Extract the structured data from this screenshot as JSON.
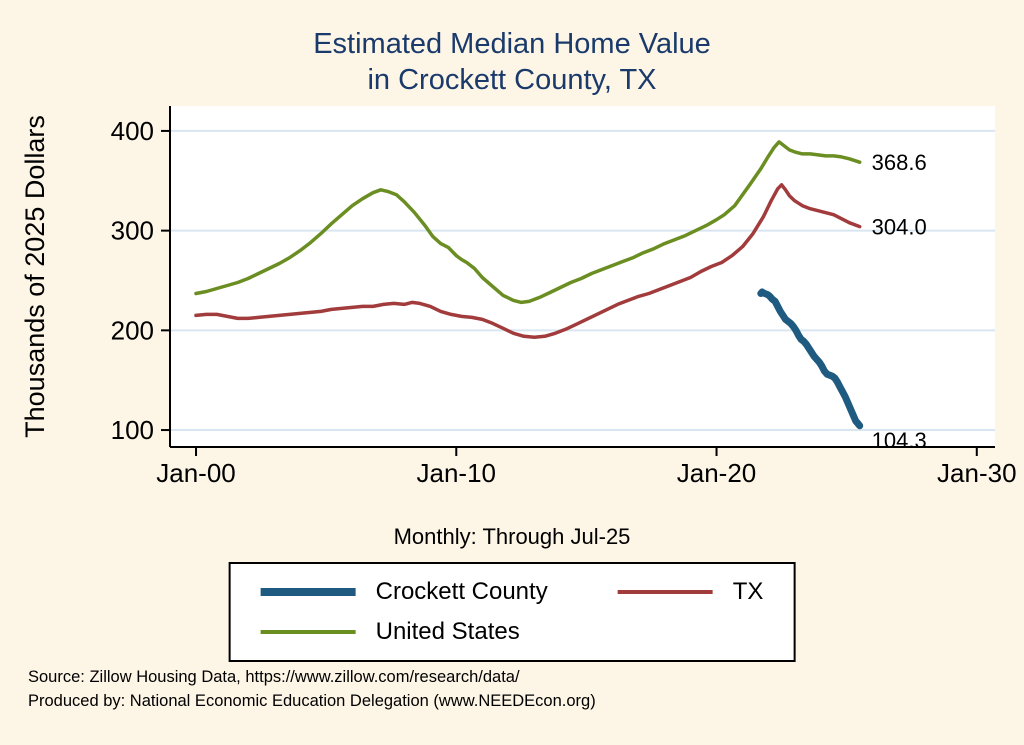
{
  "title": {
    "line1": "Estimated Median Home Value",
    "line2": "in Crockett County, TX"
  },
  "source_line1": "Source: Zillow Housing Data, https://www.zillow.com/research/data/",
  "source_line2": "Produced by: National Economic Education Delegation (www.NEEDEcon.org)",
  "colors": {
    "background": "#fdf5e6",
    "plot_background": "#ffffff",
    "grid": "#d9e6f2",
    "axis": "#000000",
    "title": "#1a3a6b",
    "crockett_county": "#1f5a80",
    "tx": "#a23c3c",
    "united_states": "#6b8e23"
  },
  "legend": {
    "items": [
      {
        "label": "Crockett County",
        "color": "#1f5a80",
        "thick": true
      },
      {
        "label": "TX",
        "color": "#a23c3c",
        "thick": false
      },
      {
        "label": "United States",
        "color": "#6b8e23",
        "thick": false
      }
    ]
  },
  "chart_data": {
    "type": "line",
    "title": "Estimated Median Home Value in Crockett County, TX",
    "xlabel": "Monthly: Through Jul-25",
    "ylabel": "Thousands of 2025 Dollars",
    "xlim": [
      1999.0,
      2030.7
    ],
    "ylim": [
      83,
      425
    ],
    "grid": "horizontal",
    "legend_position": "bottom",
    "xticks": [
      {
        "value": 2000,
        "label": "Jan-00"
      },
      {
        "value": 2010,
        "label": "Jan-10"
      },
      {
        "value": 2020,
        "label": "Jan-20"
      },
      {
        "value": 2030,
        "label": "Jan-30"
      }
    ],
    "yticks": [
      {
        "value": 100,
        "label": "100"
      },
      {
        "value": 200,
        "label": "200"
      },
      {
        "value": 300,
        "label": "300"
      },
      {
        "value": 400,
        "label": "400"
      }
    ],
    "series": [
      {
        "name": "Crockett County",
        "color": "#1f5a80",
        "line_width": 7,
        "end_label": "104.3",
        "points": [
          [
            2021.7,
            237
          ],
          [
            2021.75,
            238.5
          ],
          [
            2021.85,
            237
          ],
          [
            2021.95,
            236
          ],
          [
            2022.05,
            234
          ],
          [
            2022.15,
            231
          ],
          [
            2022.25,
            229
          ],
          [
            2022.35,
            224
          ],
          [
            2022.45,
            219
          ],
          [
            2022.55,
            215
          ],
          [
            2022.65,
            211
          ],
          [
            2022.75,
            209
          ],
          [
            2022.85,
            207
          ],
          [
            2022.95,
            204
          ],
          [
            2023.05,
            200
          ],
          [
            2023.15,
            195
          ],
          [
            2023.25,
            191
          ],
          [
            2023.35,
            189
          ],
          [
            2023.45,
            186
          ],
          [
            2023.55,
            182
          ],
          [
            2023.65,
            178
          ],
          [
            2023.75,
            174
          ],
          [
            2023.85,
            171
          ],
          [
            2023.95,
            168
          ],
          [
            2024.05,
            164
          ],
          [
            2024.15,
            159
          ],
          [
            2024.25,
            156
          ],
          [
            2024.35,
            155
          ],
          [
            2024.45,
            154
          ],
          [
            2024.55,
            152
          ],
          [
            2024.65,
            148
          ],
          [
            2024.75,
            143
          ],
          [
            2024.85,
            138
          ],
          [
            2024.95,
            133
          ],
          [
            2025.05,
            127
          ],
          [
            2025.15,
            121
          ],
          [
            2025.25,
            115
          ],
          [
            2025.35,
            109
          ],
          [
            2025.45,
            106
          ],
          [
            2025.5,
            104.3
          ]
        ]
      },
      {
        "name": "TX",
        "color": "#a23c3c",
        "line_width": 3.5,
        "end_label": "304.0",
        "points": [
          [
            2000,
            215
          ],
          [
            2000.4,
            216
          ],
          [
            2000.8,
            216
          ],
          [
            2001.2,
            214
          ],
          [
            2001.6,
            212
          ],
          [
            2002,
            212
          ],
          [
            2002.4,
            213
          ],
          [
            2002.8,
            214
          ],
          [
            2003.2,
            215
          ],
          [
            2003.6,
            216
          ],
          [
            2004,
            217
          ],
          [
            2004.4,
            218
          ],
          [
            2004.8,
            219
          ],
          [
            2005.2,
            221
          ],
          [
            2005.6,
            222
          ],
          [
            2006,
            223
          ],
          [
            2006.4,
            224
          ],
          [
            2006.8,
            224
          ],
          [
            2007.2,
            226
          ],
          [
            2007.6,
            227
          ],
          [
            2008,
            226
          ],
          [
            2008.3,
            228
          ],
          [
            2008.6,
            227
          ],
          [
            2009,
            224
          ],
          [
            2009.4,
            219
          ],
          [
            2009.8,
            216
          ],
          [
            2010.2,
            214
          ],
          [
            2010.6,
            213
          ],
          [
            2011,
            211
          ],
          [
            2011.4,
            207
          ],
          [
            2011.8,
            202
          ],
          [
            2012.2,
            197
          ],
          [
            2012.6,
            194
          ],
          [
            2013,
            193
          ],
          [
            2013.4,
            194
          ],
          [
            2013.8,
            197
          ],
          [
            2014.2,
            201
          ],
          [
            2014.6,
            206
          ],
          [
            2015,
            211
          ],
          [
            2015.4,
            216
          ],
          [
            2015.8,
            221
          ],
          [
            2016.2,
            226
          ],
          [
            2016.6,
            230
          ],
          [
            2017,
            234
          ],
          [
            2017.4,
            237
          ],
          [
            2017.8,
            241
          ],
          [
            2018.2,
            245
          ],
          [
            2018.6,
            249
          ],
          [
            2019,
            253
          ],
          [
            2019.4,
            259
          ],
          [
            2019.8,
            264
          ],
          [
            2020.2,
            268
          ],
          [
            2020.6,
            275
          ],
          [
            2021,
            284
          ],
          [
            2021.4,
            297
          ],
          [
            2021.8,
            314
          ],
          [
            2022.1,
            330
          ],
          [
            2022.35,
            342
          ],
          [
            2022.5,
            346
          ],
          [
            2022.65,
            341
          ],
          [
            2022.8,
            335
          ],
          [
            2023,
            330
          ],
          [
            2023.3,
            325
          ],
          [
            2023.6,
            322
          ],
          [
            2023.9,
            320
          ],
          [
            2024.2,
            318
          ],
          [
            2024.5,
            316
          ],
          [
            2024.8,
            312
          ],
          [
            2025.1,
            308
          ],
          [
            2025.5,
            304
          ]
        ]
      },
      {
        "name": "United States",
        "color": "#6b8e23",
        "line_width": 3.5,
        "end_label": "368.6",
        "points": [
          [
            2000,
            237
          ],
          [
            2000.4,
            239
          ],
          [
            2000.8,
            242
          ],
          [
            2001.2,
            245
          ],
          [
            2001.6,
            248
          ],
          [
            2002,
            252
          ],
          [
            2002.4,
            257
          ],
          [
            2002.8,
            262
          ],
          [
            2003.2,
            267
          ],
          [
            2003.6,
            273
          ],
          [
            2004,
            280
          ],
          [
            2004.4,
            288
          ],
          [
            2004.8,
            297
          ],
          [
            2005.2,
            307
          ],
          [
            2005.6,
            316
          ],
          [
            2006,
            325
          ],
          [
            2006.4,
            332
          ],
          [
            2006.8,
            338
          ],
          [
            2007.1,
            341
          ],
          [
            2007.4,
            339
          ],
          [
            2007.7,
            336
          ],
          [
            2008,
            329
          ],
          [
            2008.4,
            318
          ],
          [
            2008.8,
            305
          ],
          [
            2009.1,
            294
          ],
          [
            2009.4,
            287
          ],
          [
            2009.7,
            283
          ],
          [
            2010,
            275
          ],
          [
            2010.2,
            271
          ],
          [
            2010.4,
            268
          ],
          [
            2010.7,
            262
          ],
          [
            2011,
            253
          ],
          [
            2011.4,
            244
          ],
          [
            2011.8,
            235
          ],
          [
            2012.2,
            230
          ],
          [
            2012.5,
            228
          ],
          [
            2012.8,
            229
          ],
          [
            2013.2,
            233
          ],
          [
            2013.6,
            238
          ],
          [
            2014,
            243
          ],
          [
            2014.4,
            248
          ],
          [
            2014.8,
            252
          ],
          [
            2015.2,
            257
          ],
          [
            2015.6,
            261
          ],
          [
            2016,
            265
          ],
          [
            2016.4,
            269
          ],
          [
            2016.8,
            273
          ],
          [
            2017.2,
            278
          ],
          [
            2017.6,
            282
          ],
          [
            2018,
            287
          ],
          [
            2018.4,
            291
          ],
          [
            2018.8,
            295
          ],
          [
            2019.2,
            300
          ],
          [
            2019.6,
            305
          ],
          [
            2020,
            311
          ],
          [
            2020.3,
            316
          ],
          [
            2020.7,
            325
          ],
          [
            2021,
            336
          ],
          [
            2021.3,
            347
          ],
          [
            2021.7,
            362
          ],
          [
            2022,
            375
          ],
          [
            2022.2,
            383
          ],
          [
            2022.4,
            389
          ],
          [
            2022.6,
            385
          ],
          [
            2022.8,
            381
          ],
          [
            2023,
            379
          ],
          [
            2023.3,
            377
          ],
          [
            2023.6,
            377
          ],
          [
            2023.9,
            376
          ],
          [
            2024.2,
            375
          ],
          [
            2024.5,
            375
          ],
          [
            2024.8,
            374
          ],
          [
            2025.1,
            372
          ],
          [
            2025.5,
            368.6
          ]
        ]
      }
    ]
  }
}
